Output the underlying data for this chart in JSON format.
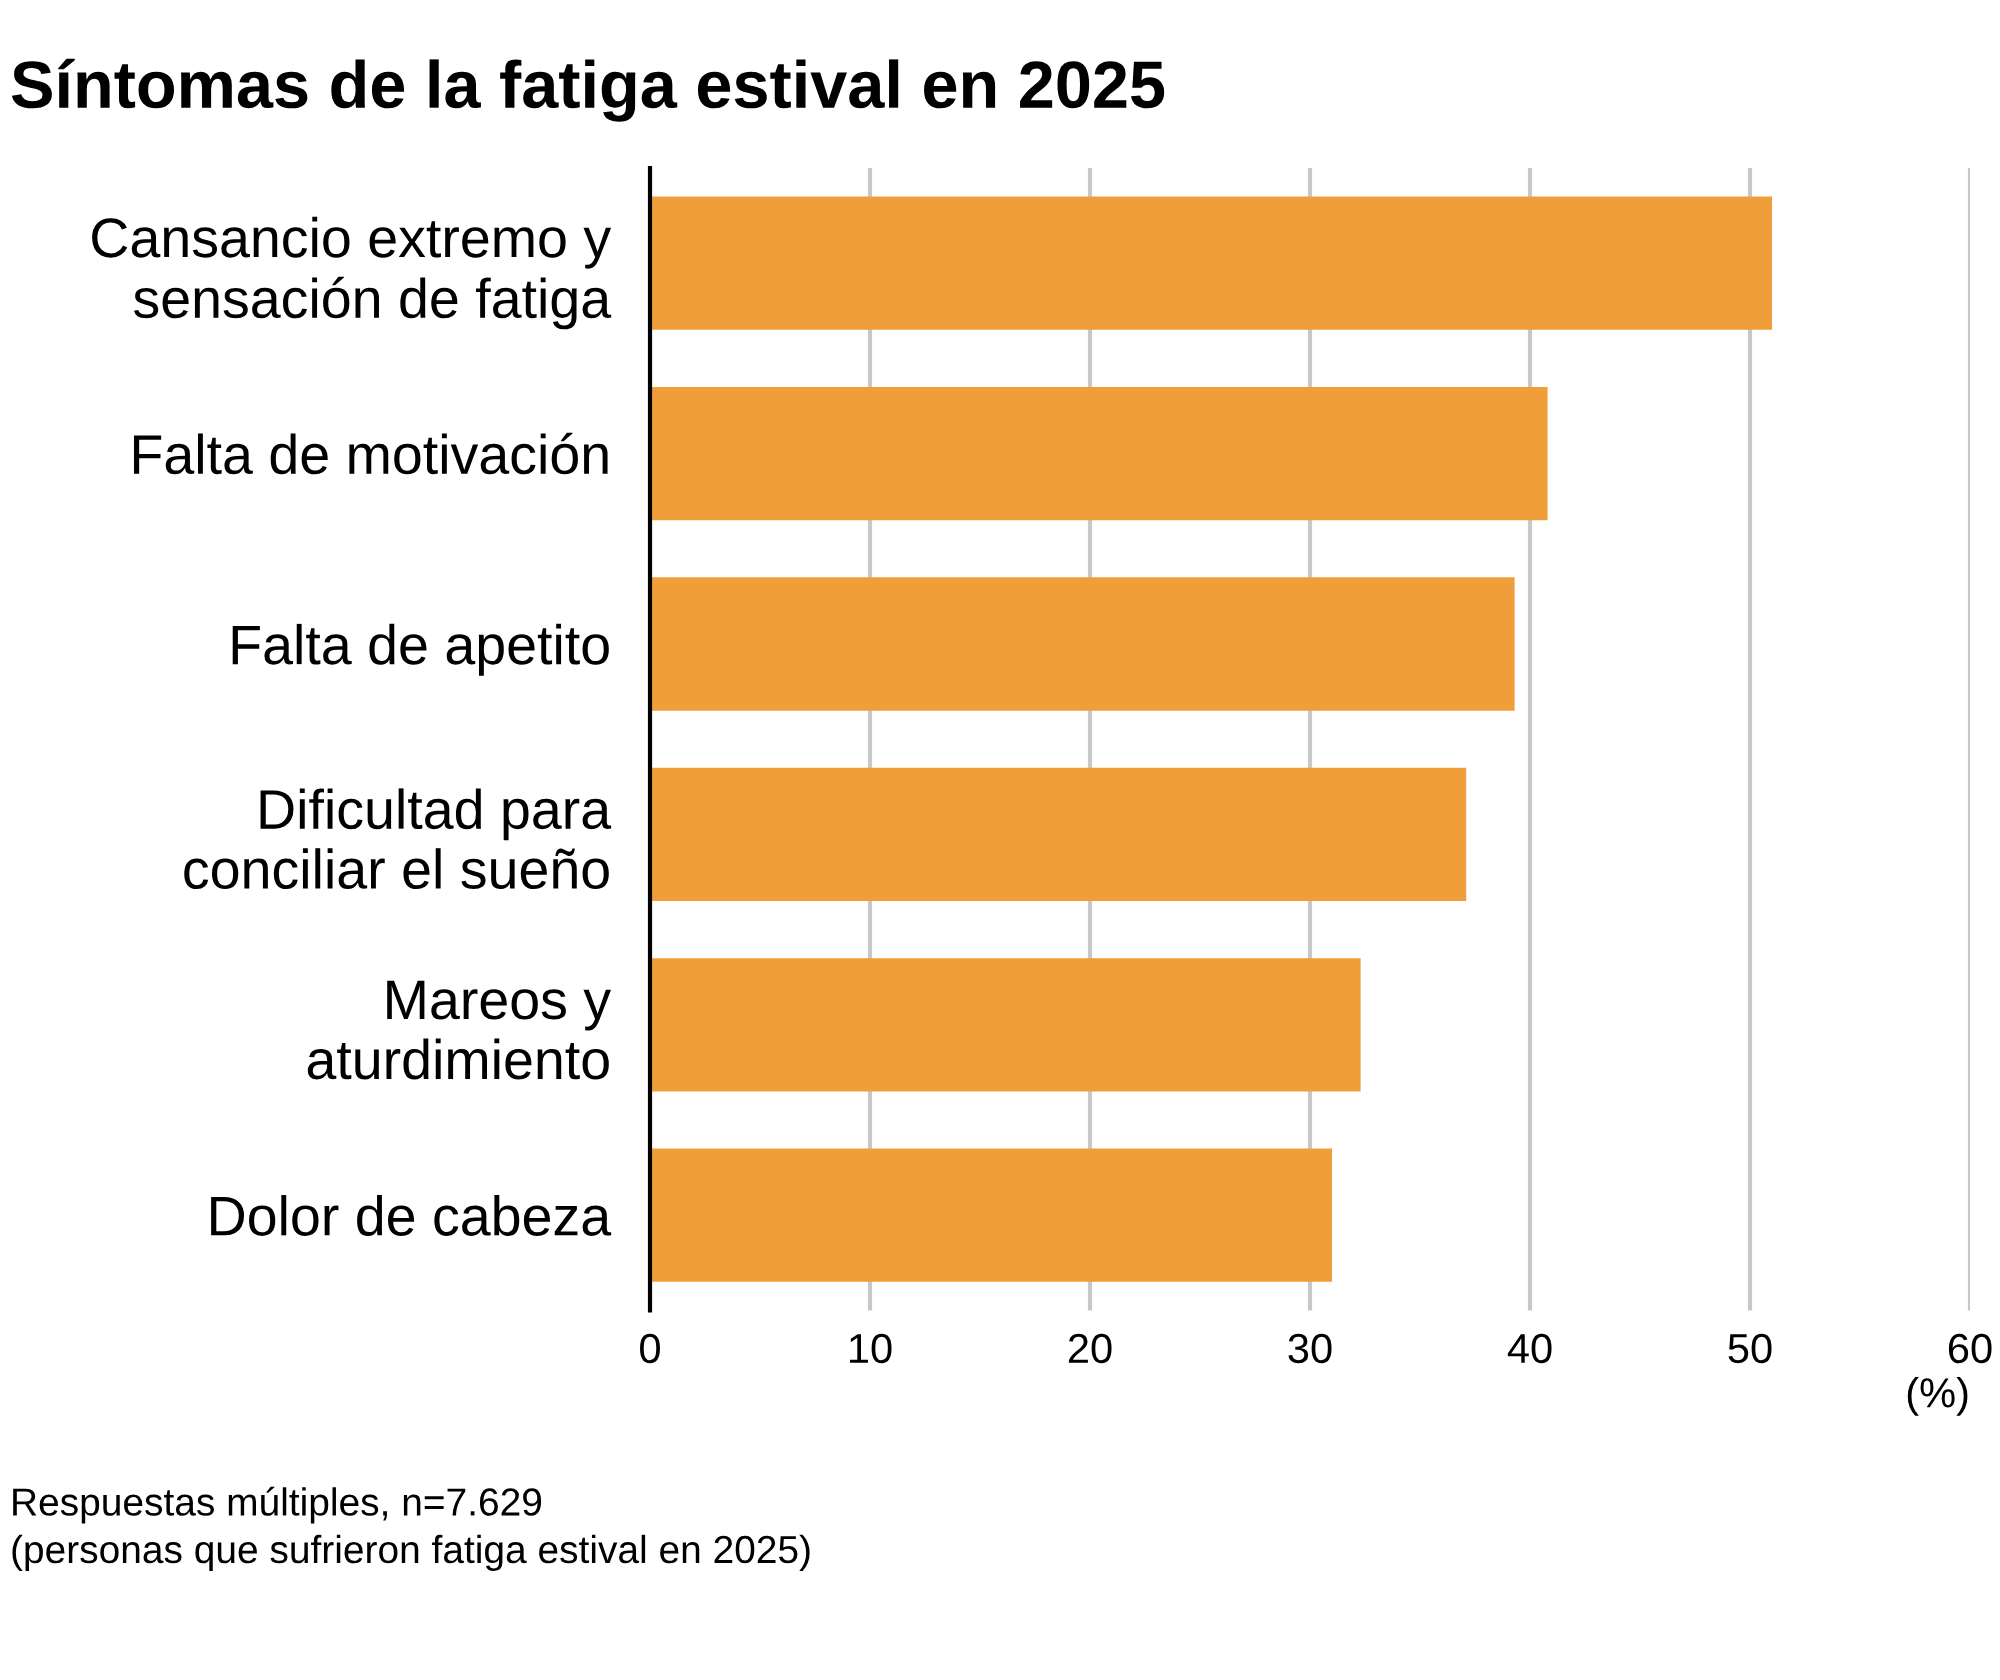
{
  "chart_data": {
    "type": "bar",
    "orientation": "horizontal",
    "title": "Síntomas de la fatiga estival en 2025",
    "categories": [
      "Cansancio extremo y\nsensación de fatiga",
      "Falta de motivación",
      "Falta de apetito",
      "Dificultad para\nconciliar el sueño",
      "Mareos y\naturdimiento",
      "Dolor de cabeza"
    ],
    "values": [
      51.0,
      40.8,
      39.3,
      37.1,
      32.3,
      31.0
    ],
    "color": "#f09e3a",
    "xlim": [
      0,
      60
    ],
    "xticks": [
      0,
      10,
      20,
      30,
      40,
      50,
      60
    ],
    "xlabel": "(%)",
    "grid": "x",
    "annotations": [
      "Respuestas múltiples, n=7.629\n(personas que sufrieron fatiga estival en 2025)"
    ]
  }
}
